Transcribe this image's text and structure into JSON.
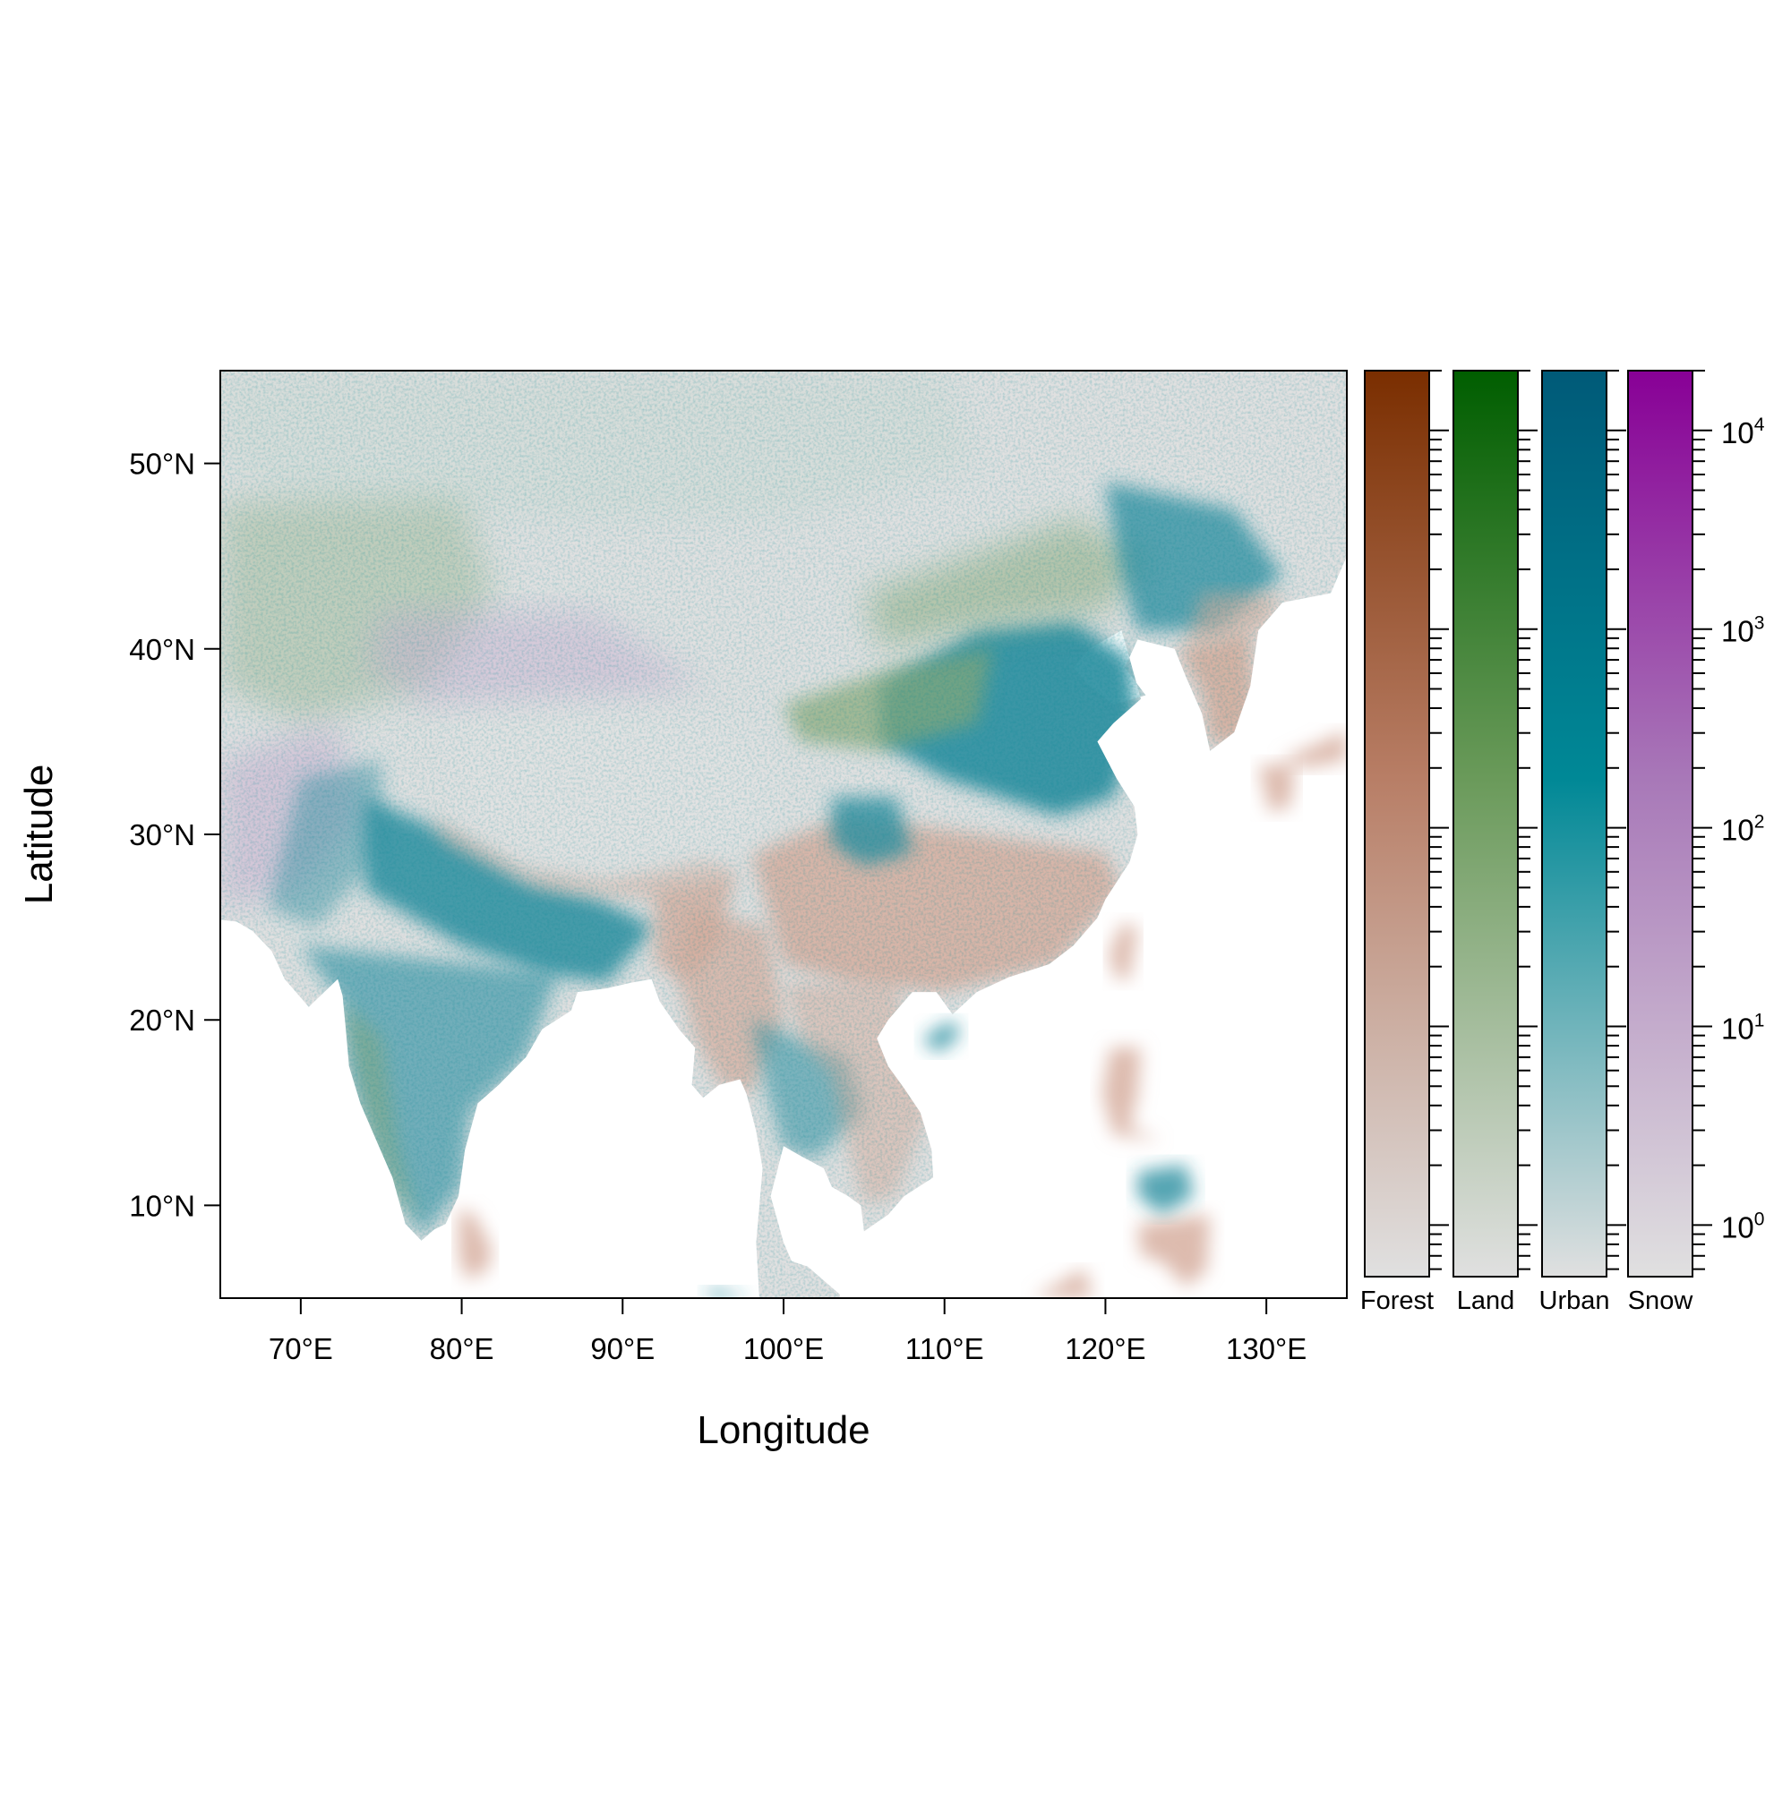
{
  "map": {
    "xlabel": "Longitude",
    "ylabel": "Latitude",
    "xlim": [
      65,
      135
    ],
    "ylim": [
      5,
      55
    ],
    "x_ticks": [
      {
        "value": 70,
        "label": "70°E"
      },
      {
        "value": 80,
        "label": "80°E"
      },
      {
        "value": 90,
        "label": "90°E"
      },
      {
        "value": 100,
        "label": "100°E"
      },
      {
        "value": 110,
        "label": "110°E"
      },
      {
        "value": 120,
        "label": "120°E"
      },
      {
        "value": 130,
        "label": "130°E"
      }
    ],
    "y_ticks": [
      {
        "value": 10,
        "label": "10°N"
      },
      {
        "value": 20,
        "label": "20°N"
      },
      {
        "value": 30,
        "label": "30°N"
      },
      {
        "value": 40,
        "label": "40°N"
      },
      {
        "value": 50,
        "label": "50°N"
      }
    ],
    "colors": {
      "background": "#e0e0e0",
      "water": "#ffffff",
      "forest": "#d4aa9a",
      "land": "#88a878",
      "urban": "#2a8ea0",
      "snow": "#c8b0d0"
    }
  },
  "legend": {
    "scale": "log",
    "range": [
      0.55,
      20000
    ],
    "bars": [
      {
        "name": "Forest",
        "color_low": "#e0e0e0",
        "color_mid": "#b87e66",
        "color_high": "#7a2e00"
      },
      {
        "name": "Land",
        "color_low": "#e0e0e0",
        "color_mid": "#6a9a5a",
        "color_high": "#005e00"
      },
      {
        "name": "Urban",
        "color_low": "#e0e0e0",
        "color_mid": "#008896",
        "color_high": "#005a78"
      },
      {
        "name": "Snow",
        "color_low": "#e0e0e0",
        "color_mid": "#a878b8",
        "color_high": "#880096"
      }
    ],
    "labels": [
      {
        "value": 1,
        "base": "10",
        "exp": "0"
      },
      {
        "value": 10,
        "base": "10",
        "exp": "1"
      },
      {
        "value": 100,
        "base": "10",
        "exp": "2"
      },
      {
        "value": 1000,
        "base": "10",
        "exp": "3"
      },
      {
        "value": 10000,
        "base": "10",
        "exp": "4"
      }
    ]
  }
}
